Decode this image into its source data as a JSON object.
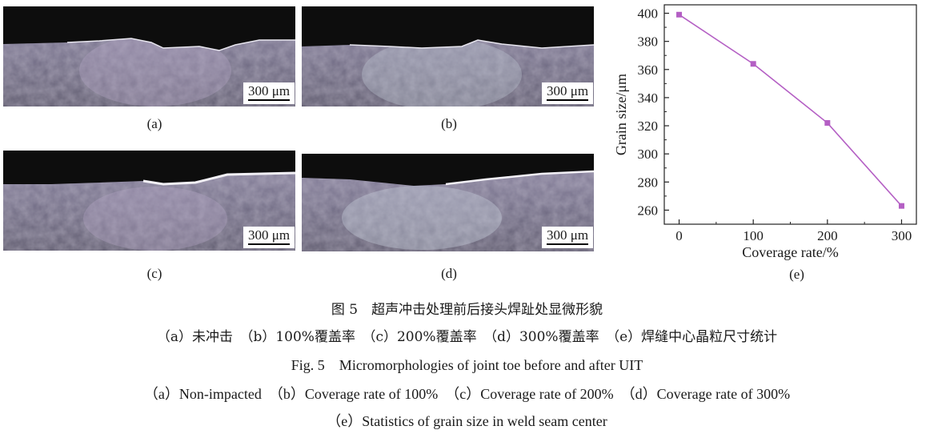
{
  "panels": [
    {
      "label": "(a)",
      "scale": "300 μm"
    },
    {
      "label": "(b)",
      "scale": "300 μm"
    },
    {
      "label": "(c)",
      "scale": "300 μm"
    },
    {
      "label": "(d)",
      "scale": "300 μm"
    }
  ],
  "chart_label": "(e)",
  "chart_data": {
    "type": "line",
    "x": [
      0,
      100,
      200,
      300
    ],
    "y": [
      399,
      364,
      322,
      263
    ],
    "xlabel": "Coverage rate/%",
    "ylabel": "Grain size/μm",
    "xticks": [
      "0",
      "100",
      "200",
      "300"
    ],
    "yticks": [
      "260",
      "280",
      "300",
      "320",
      "340",
      "360",
      "380",
      "400"
    ],
    "xlim": [
      -20,
      320
    ],
    "ylim": [
      250,
      406
    ],
    "line_color": "#b45fc4",
    "marker": "square",
    "grid": false
  },
  "captions": {
    "cn_title": "图 5　超声冲击处理前后接头焊趾处显微形貌",
    "cn_sub": "（a）未冲击　（b）100%覆盖率　（c）200%覆盖率　（d）300%覆盖率　（e）焊缝中心晶粒尺寸统计",
    "en_title": "Fig. 5　Micromorphologies of joint toe before and after UIT",
    "en_sub1": "（a）Non-impacted　（b）Coverage rate of 100%　（c）Coverage rate of 200%　（d）Coverage rate of 300%",
    "en_sub2": "（e）Statistics of grain size in weld seam center"
  }
}
